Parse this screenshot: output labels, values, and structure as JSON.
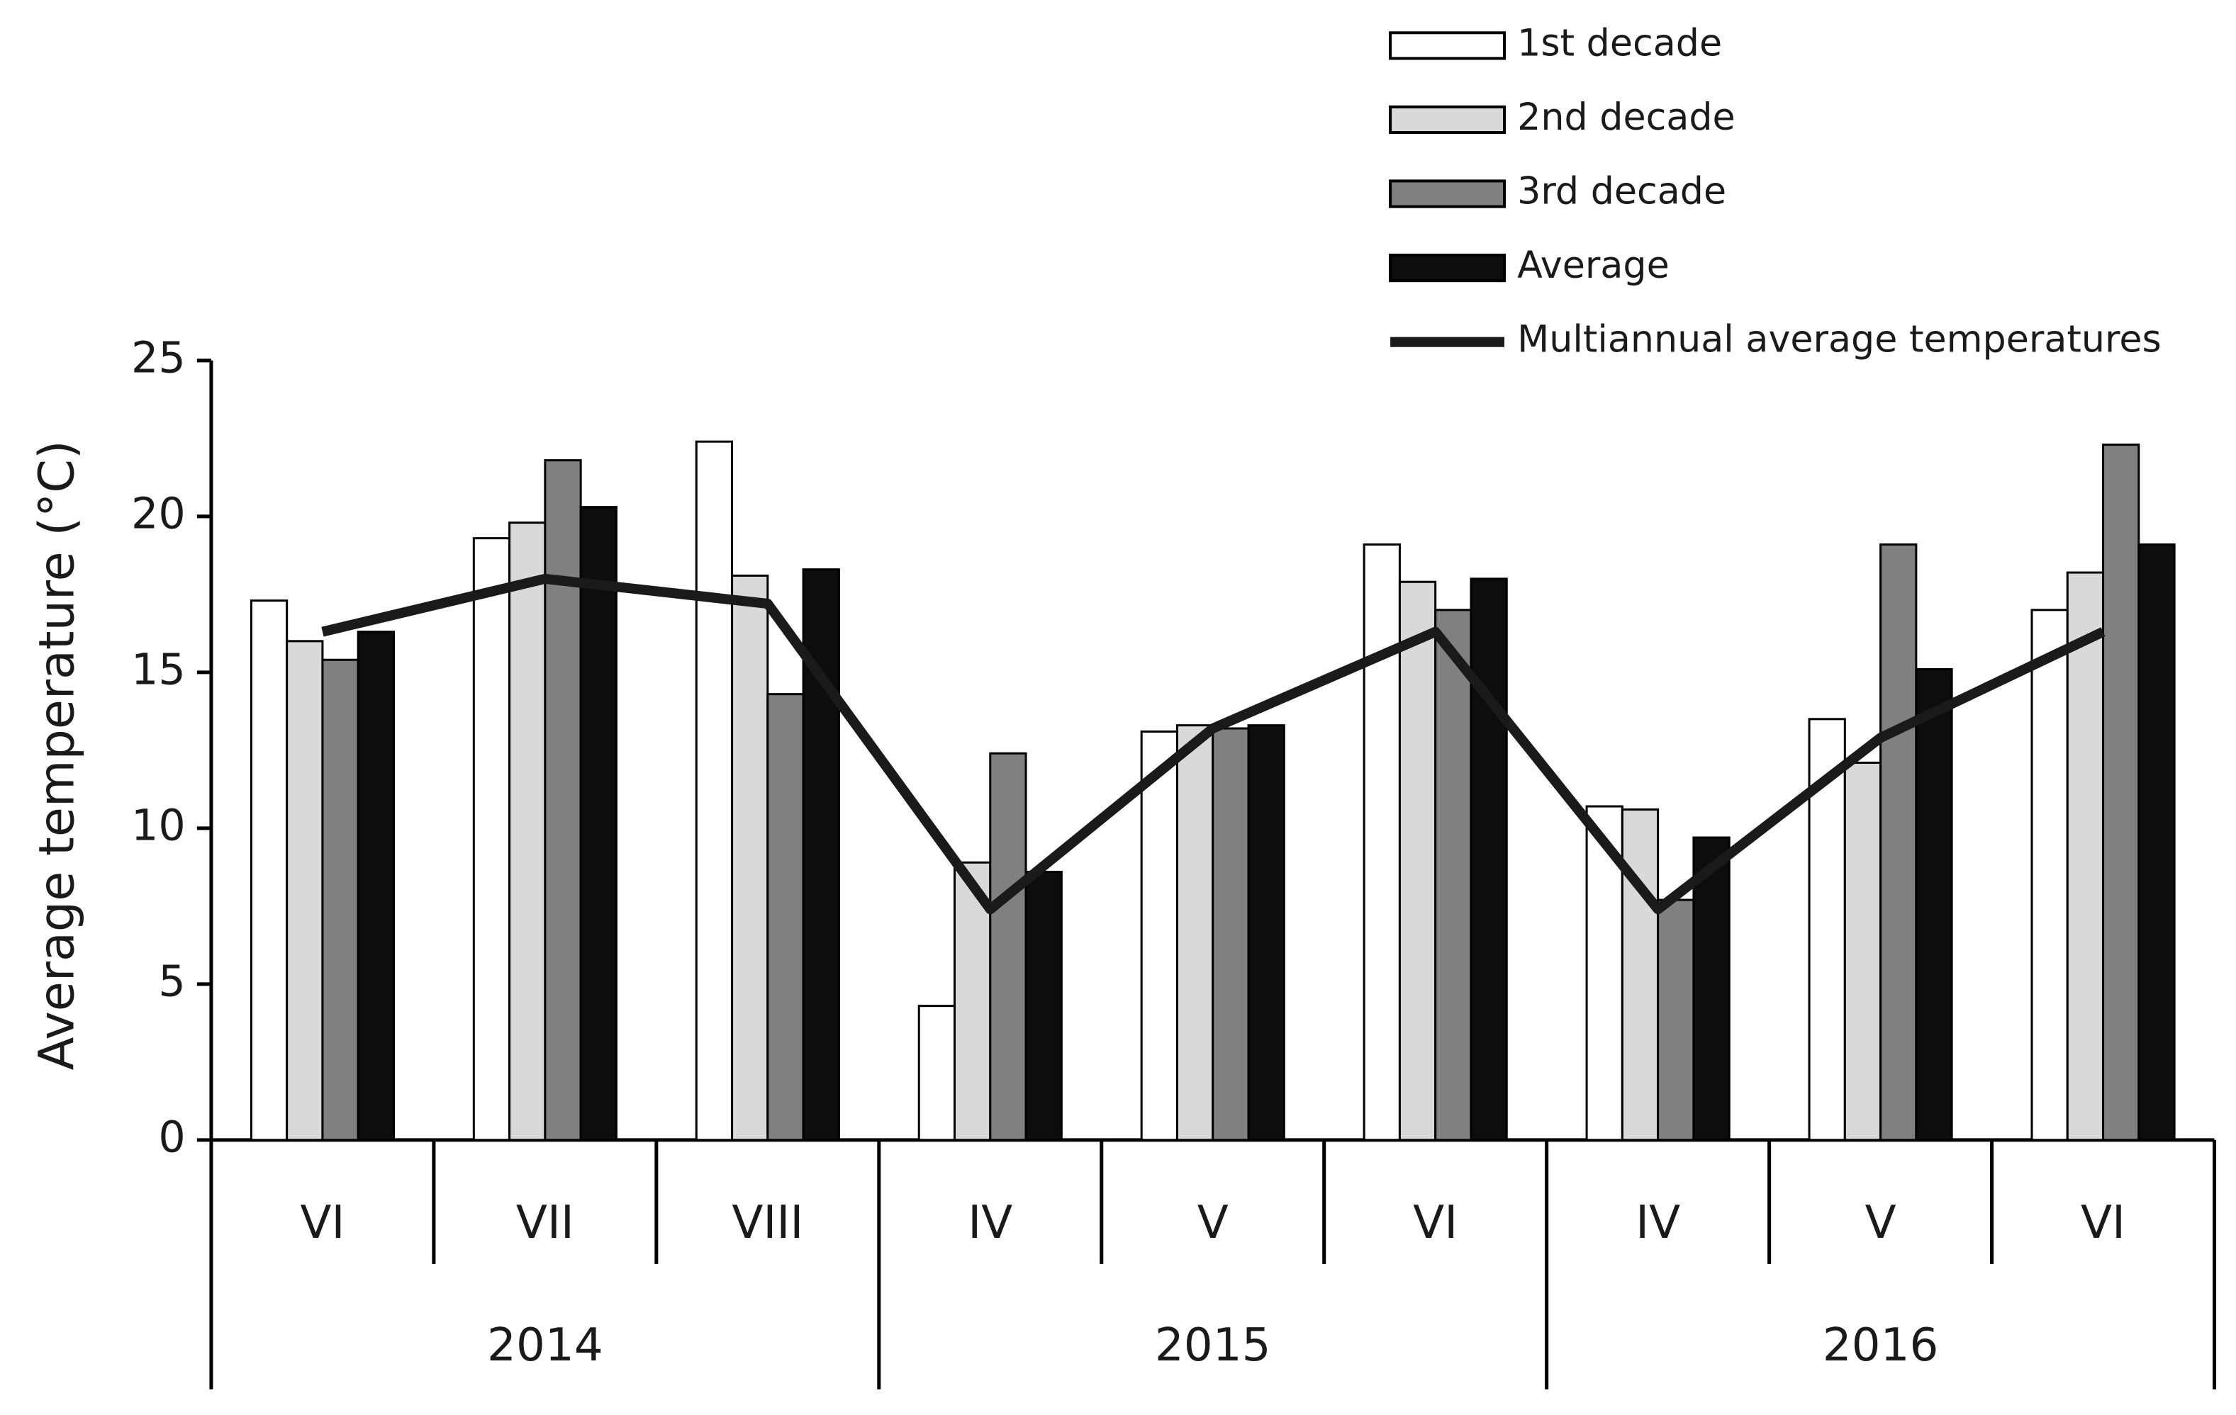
{
  "chart_data": {
    "type": "bar",
    "y_label": "Average temperature (°C)",
    "groups": [
      {
        "label": "2014",
        "categories": [
          "VI",
          "VII",
          "VIII"
        ]
      },
      {
        "label": "2015",
        "categories": [
          "IV",
          "V",
          "VI"
        ]
      },
      {
        "label": "2016",
        "categories": [
          "IV",
          "V",
          "VI"
        ]
      }
    ],
    "series": [
      {
        "name": "1st decade",
        "color": "#ffffff",
        "values": [
          17.3,
          19.3,
          22.4,
          4.3,
          13.1,
          19.1,
          10.7,
          13.5,
          17.0
        ]
      },
      {
        "name": "2nd decade",
        "color": "#d9d9d9",
        "values": [
          16.0,
          19.8,
          18.1,
          8.9,
          13.3,
          17.9,
          10.6,
          12.1,
          18.2
        ]
      },
      {
        "name": "3rd decade",
        "color": "#808080",
        "values": [
          15.4,
          21.8,
          14.3,
          12.4,
          13.2,
          17.0,
          7.7,
          19.1,
          22.3
        ]
      },
      {
        "name": "Average",
        "color": "#0d0d0d",
        "values": [
          16.3,
          20.3,
          18.3,
          8.6,
          13.3,
          18.0,
          9.7,
          15.1,
          19.1
        ]
      },
      {
        "name": "Multiannual average temperatures",
        "color": "#1a1a1a",
        "kind": "line",
        "values": [
          16.3,
          18.0,
          17.2,
          7.4,
          13.2,
          16.3,
          7.4,
          12.9,
          16.3
        ]
      }
    ],
    "ylim": [
      0,
      25
    ],
    "yticks": [
      0,
      5,
      10,
      15,
      20,
      25
    ],
    "grid": false,
    "legend": "top-right"
  }
}
